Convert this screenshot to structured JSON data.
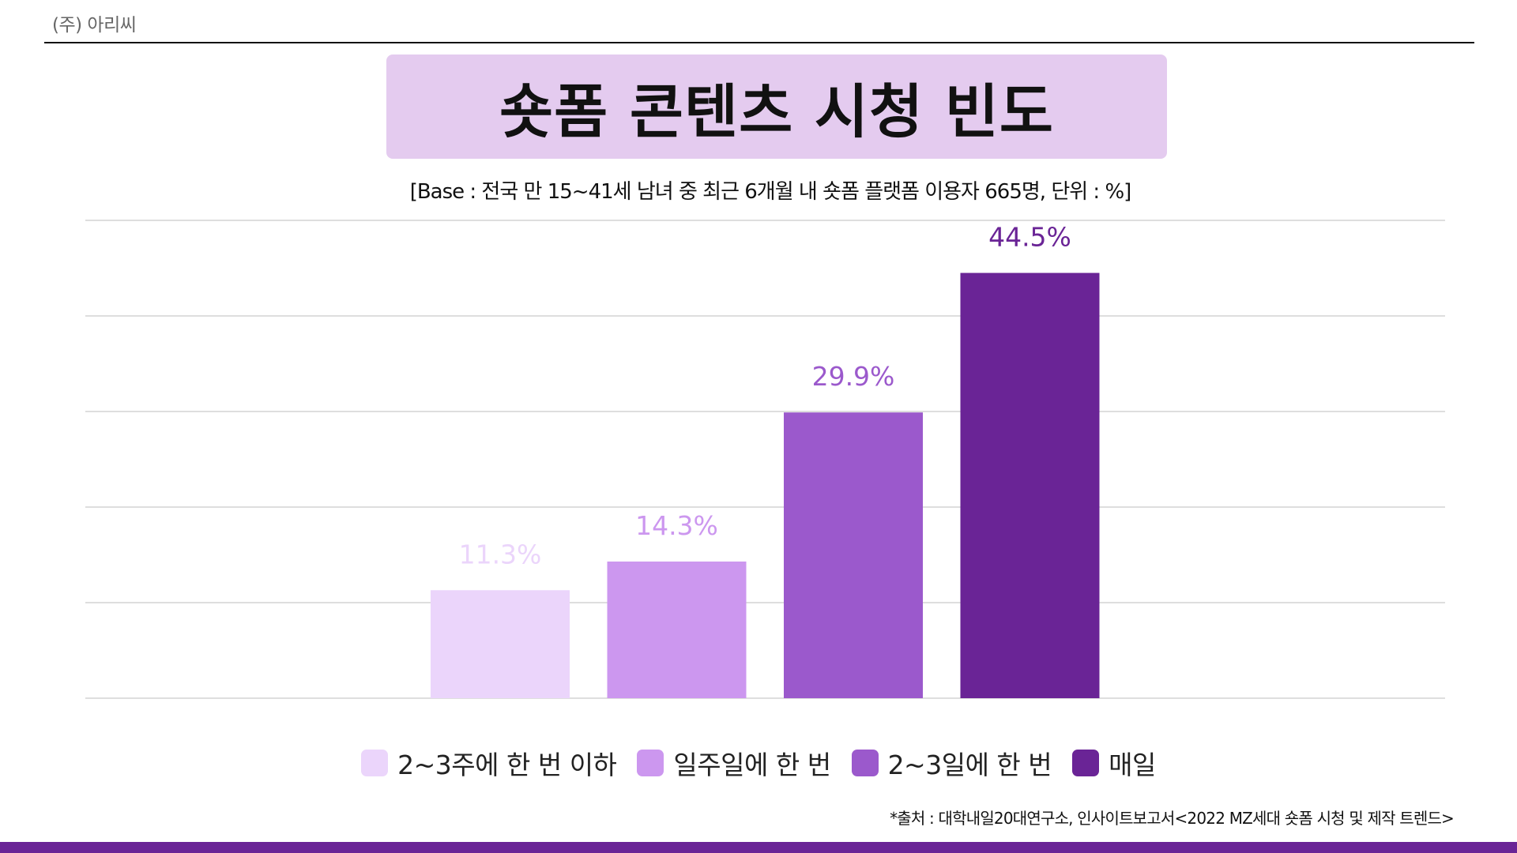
{
  "header": {
    "company": "(주) 아리씨"
  },
  "colors": {
    "title_bg": "#e4cbef",
    "brand": "#6a2496",
    "gridline": "#d4d4d4"
  },
  "chart_data": {
    "type": "bar",
    "title": "숏폼 콘텐츠 시청 빈도",
    "subtitle": "[Base : 전국 만 15~41세 남녀 중 최근 6개월 내 숏폼 플랫폼 이용자 665명, 단위 : %]",
    "categories": [
      "2~3주에 한 번 이하",
      "일주일에 한 번",
      "2~3일에 한 번",
      "매일"
    ],
    "values": [
      11.3,
      14.3,
      29.9,
      44.5
    ],
    "value_labels": [
      "11.3%",
      "14.3%",
      "29.9%",
      "44.5%"
    ],
    "colors": [
      "#ebd5fb",
      "#cc97ef",
      "#9b59cc",
      "#6a2496"
    ],
    "ylim": [
      0,
      50
    ],
    "grid": true,
    "gridlines": 6,
    "legend": "bottom-center",
    "xlabel": "",
    "ylabel": ""
  },
  "footer": {
    "source": "*출처 : 대학내일20대연구소, 인사이트보고서<2022 MZ세대 숏폼 시청 및 제작 트렌드>"
  }
}
